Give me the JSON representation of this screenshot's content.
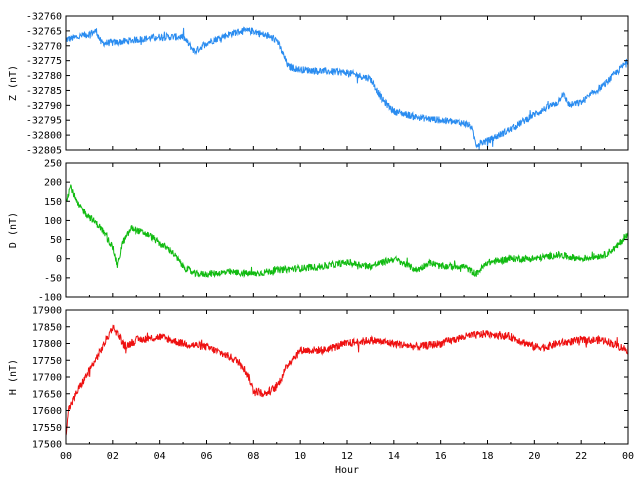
{
  "chart_data": [
    {
      "type": "line",
      "panel": "Z",
      "ylabel": "Z (nT)",
      "xlim": [
        0,
        24
      ],
      "ylim": [
        -32805,
        -32760
      ],
      "yticks": [
        "-32760",
        "-32765",
        "-32770",
        "-32775",
        "-32780",
        "-32785",
        "-32790",
        "-32795",
        "-32800",
        "-32805"
      ],
      "ytick_values": [
        -32760,
        -32765,
        -32770,
        -32775,
        -32780,
        -32785,
        -32790,
        -32795,
        -32800,
        -32805
      ],
      "color": "#2a8cf0",
      "noise": 1.2,
      "x": [
        0,
        0.5,
        1.0,
        1.3,
        1.5,
        2.0,
        3.0,
        4.0,
        5.0,
        5.5,
        6.0,
        7.0,
        7.5,
        8.0,
        9.0,
        9.5,
        10,
        12,
        13,
        13.5,
        14,
        15,
        16,
        17,
        17.3,
        17.5,
        18,
        19,
        20,
        21,
        21.2,
        21.5,
        22,
        23,
        24
      ],
      "y": [
        -32768,
        -32767,
        -32766,
        -32765,
        -32769,
        -32769,
        -32768,
        -32767,
        -32767,
        -32772,
        -32769,
        -32766,
        -32765,
        -32765,
        -32768,
        -32777,
        -32778,
        -32779,
        -32781,
        -32788,
        -32792,
        -32794,
        -32795,
        -32796,
        -32797,
        -32803,
        -32802,
        -32798,
        -32793,
        -32789,
        -32786,
        -32790,
        -32789,
        -32783,
        -32775
      ]
    },
    {
      "type": "line",
      "panel": "D",
      "ylabel": "D (nT)",
      "xlim": [
        0,
        24
      ],
      "ylim": [
        -100,
        250
      ],
      "yticks": [
        "250",
        "200",
        "150",
        "100",
        "50",
        "0",
        "-50",
        "-100"
      ],
      "ytick_values": [
        250,
        200,
        150,
        100,
        50,
        0,
        -50,
        -100
      ],
      "color": "#11bb11",
      "noise": 9,
      "x": [
        0,
        0.2,
        0.5,
        1.0,
        1.5,
        2.0,
        2.2,
        2.4,
        2.8,
        3.2,
        3.6,
        4.0,
        4.5,
        5.0,
        5.5,
        6.0,
        7.0,
        8.0,
        9.0,
        10,
        11,
        12,
        13,
        14,
        15,
        15.5,
        16,
        17,
        17.5,
        18,
        19,
        20,
        21,
        22,
        23,
        23.5,
        24
      ],
      "y": [
        150,
        190,
        140,
        110,
        80,
        30,
        -20,
        40,
        80,
        70,
        60,
        40,
        20,
        -20,
        -40,
        -40,
        -35,
        -40,
        -30,
        -25,
        -20,
        -10,
        -20,
        0,
        -30,
        -10,
        -20,
        -20,
        -40,
        -10,
        0,
        0,
        10,
        0,
        10,
        30,
        65
      ]
    },
    {
      "type": "line",
      "panel": "H",
      "ylabel": "H (nT)",
      "xlabel": "Hour",
      "xlim": [
        0,
        24
      ],
      "ylim": [
        17500,
        17900
      ],
      "yticks": [
        "17900",
        "17850",
        "17800",
        "17750",
        "17700",
        "17650",
        "17600",
        "17550",
        "17500"
      ],
      "ytick_values": [
        17900,
        17850,
        17800,
        17750,
        17700,
        17650,
        17600,
        17550,
        17500
      ],
      "xticks": [
        "00",
        "02",
        "04",
        "06",
        "08",
        "10",
        "12",
        "14",
        "16",
        "18",
        "20",
        "22",
        "00"
      ],
      "xtick_values": [
        0,
        2,
        4,
        6,
        8,
        10,
        12,
        14,
        16,
        18,
        20,
        22,
        24
      ],
      "color": "#ee1111",
      "noise": 12,
      "x": [
        0,
        0.1,
        0.5,
        1.0,
        1.5,
        2.0,
        2.3,
        2.5,
        3.0,
        4.0,
        5.0,
        6.0,
        7.0,
        7.5,
        7.8,
        8.0,
        8.5,
        9.0,
        9.5,
        10,
        11,
        12,
        13,
        14,
        15,
        16,
        17,
        18,
        19,
        20,
        20.5,
        21,
        22,
        23,
        24
      ],
      "y": [
        17530,
        17600,
        17660,
        17720,
        17780,
        17850,
        17820,
        17790,
        17810,
        17820,
        17800,
        17790,
        17760,
        17740,
        17700,
        17660,
        17650,
        17670,
        17740,
        17780,
        17780,
        17800,
        17810,
        17800,
        17790,
        17800,
        17820,
        17830,
        17820,
        17790,
        17790,
        17800,
        17810,
        17810,
        17780
      ]
    }
  ]
}
